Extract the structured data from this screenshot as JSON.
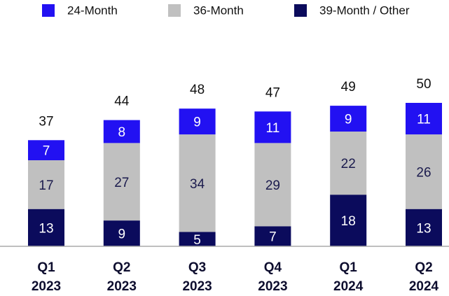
{
  "chart_data": {
    "type": "stacked_bar",
    "categories": [
      [
        "Q1",
        "2023"
      ],
      [
        "Q2",
        "2023"
      ],
      [
        "Q3",
        "2023"
      ],
      [
        "Q4",
        "2023"
      ],
      [
        "Q1",
        "2024"
      ],
      [
        "Q2",
        "2024"
      ]
    ],
    "series": [
      {
        "name": "24-Month",
        "color": "#2211f2",
        "label_color": "#ffffff",
        "values": [
          7,
          8,
          9,
          11,
          9,
          11
        ]
      },
      {
        "name": "36-Month",
        "color": "#c0c0c0",
        "label_color": "#1b1b4d",
        "values": [
          17,
          27,
          34,
          29,
          22,
          26
        ]
      },
      {
        "name": "39-Month / Other",
        "color": "#0b0b5c",
        "label_color": "#ffffff",
        "values": [
          13,
          9,
          5,
          7,
          18,
          13
        ]
      }
    ],
    "totals": [
      37,
      44,
      48,
      47,
      49,
      50
    ],
    "legend": "top"
  }
}
